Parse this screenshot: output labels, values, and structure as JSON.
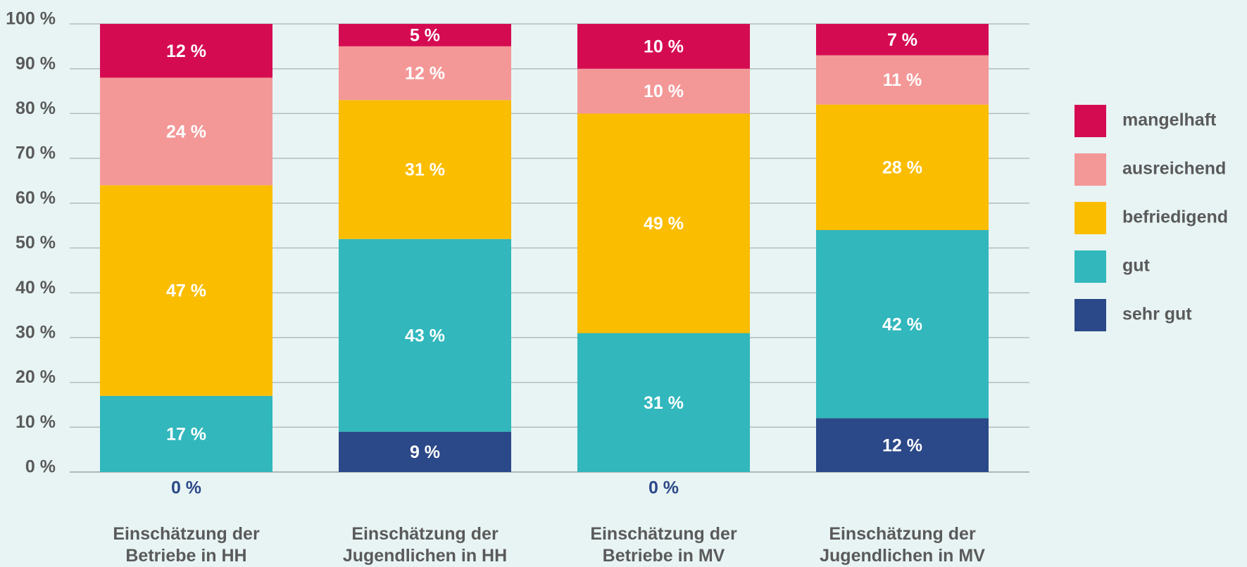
{
  "chart_data": {
    "type": "stacked_bar",
    "categories": [
      "Einschätzung der\nBetriebe in HH",
      "Einschätzung der\nJugendlichen in HH",
      "Einschätzung der\nBetriebe in MV",
      "Einschätzung der\nJugendlichen in MV"
    ],
    "series": [
      {
        "name": "sehr gut",
        "color": "#2b4888",
        "values": [
          0,
          9,
          0,
          12
        ],
        "value_labels": [
          "0 %",
          "9 %",
          "0 %",
          "12 %"
        ]
      },
      {
        "name": "gut",
        "color": "#31b7bc",
        "values": [
          17,
          43,
          31,
          42
        ],
        "value_labels": [
          "17 %",
          "43 %",
          "31 %",
          "42 %"
        ]
      },
      {
        "name": "befriedigend",
        "color": "#fbbd00",
        "values": [
          47,
          31,
          49,
          28
        ],
        "value_labels": [
          "47 %",
          "31 %",
          "49 %",
          "28 %"
        ]
      },
      {
        "name": "ausreichend",
        "color": "#f39897",
        "values": [
          24,
          12,
          10,
          11
        ],
        "value_labels": [
          "24 %",
          "12 %",
          "10 %",
          "11 %"
        ]
      },
      {
        "name": "mangelhaft",
        "color": "#d50b52",
        "values": [
          12,
          5,
          10,
          7
        ],
        "value_labels": [
          "12 %",
          "5 %",
          "10 %",
          "7 %"
        ]
      }
    ],
    "ylim": [
      0,
      100
    ],
    "yticks": [
      {
        "value": 0,
        "label": "0 %"
      },
      {
        "value": 10,
        "label": "10 %"
      },
      {
        "value": 20,
        "label": "20 %"
      },
      {
        "value": 30,
        "label": "30 %"
      },
      {
        "value": 40,
        "label": "40 %"
      },
      {
        "value": 50,
        "label": "50 %"
      },
      {
        "value": 60,
        "label": "60 %"
      },
      {
        "value": 70,
        "label": "70 %"
      },
      {
        "value": 80,
        "label": "80 %"
      },
      {
        "value": 90,
        "label": "90 %"
      },
      {
        "value": 100,
        "label": "100 %"
      }
    ],
    "grid": true,
    "legend": "right"
  }
}
